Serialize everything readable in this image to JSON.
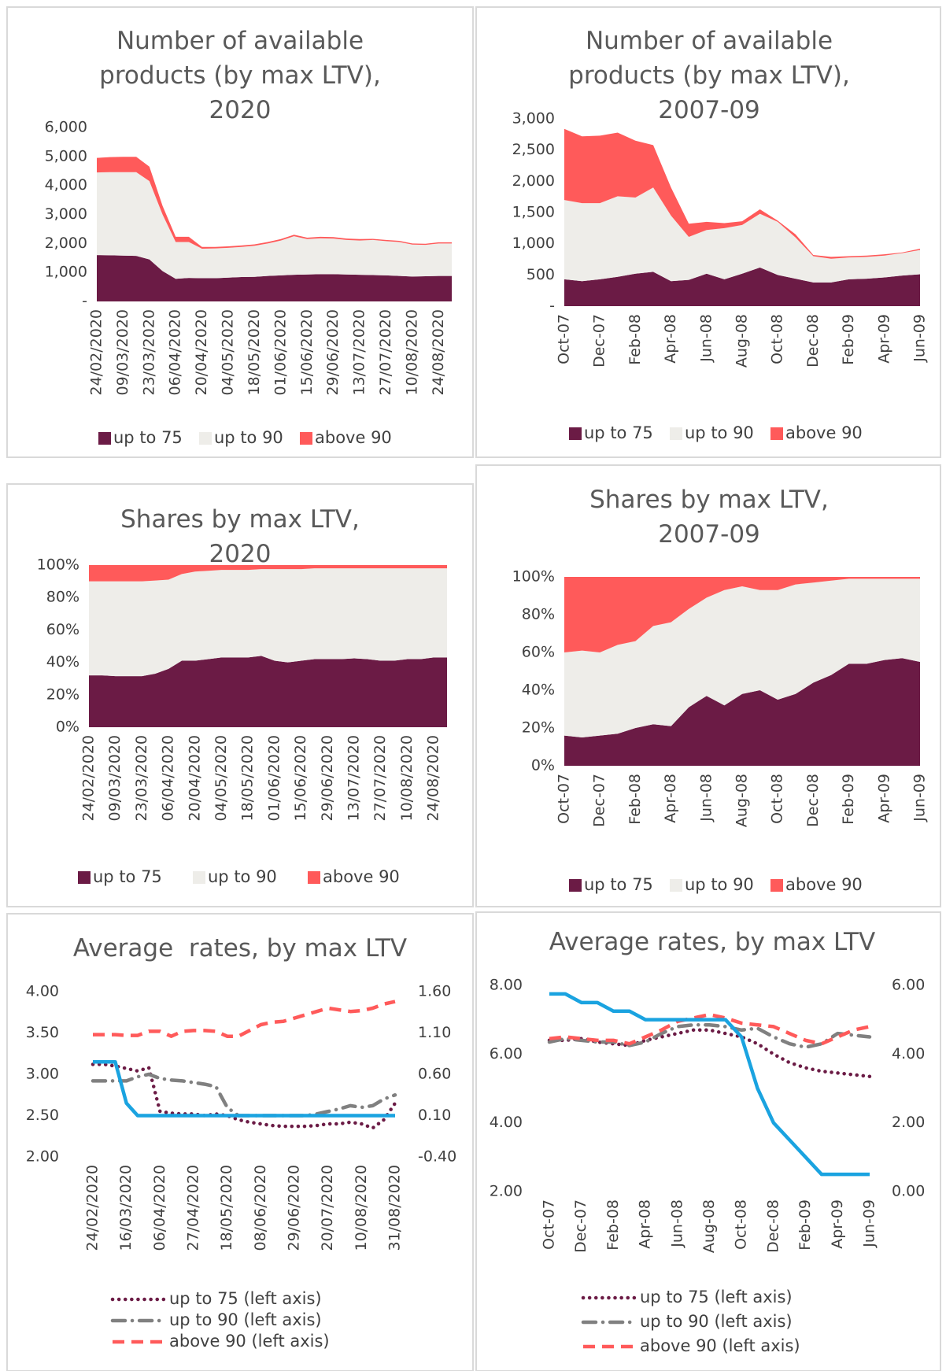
{
  "chart_data": [
    {
      "type": "area",
      "title": "Number of available products (by max LTV), 2020",
      "categories": [
        "24/02/2020",
        null,
        "09/03/2020",
        null,
        "23/03/2020",
        null,
        "06/04/2020",
        null,
        "20/04/2020",
        null,
        "04/05/2020",
        null,
        "18/05/2020",
        null,
        "01/06/2020",
        null,
        "15/06/2020",
        null,
        "29/06/2020",
        null,
        "13/07/2020",
        null,
        "27/07/2020",
        null,
        "10/08/2020",
        null,
        "24/08/2020",
        null
      ],
      "series": [
        {
          "name": "up to 75",
          "color": "#6b1b45",
          "values": [
            1600,
            1590,
            1580,
            1570,
            1450,
            1050,
            780,
            810,
            800,
            800,
            820,
            840,
            850,
            880,
            900,
            920,
            930,
            940,
            940,
            930,
            920,
            910,
            900,
            880,
            860,
            870,
            880,
            880
          ]
        },
        {
          "name": "up to 90",
          "color": "#eeede9",
          "values": [
            2850,
            2870,
            2880,
            2890,
            2700,
            1950,
            1270,
            1240,
            1020,
            1030,
            1030,
            1040,
            1070,
            1120,
            1200,
            1330,
            1220,
            1240,
            1230,
            1190,
            1180,
            1210,
            1180,
            1170,
            1100,
            1080,
            1120,
            1120
          ]
        },
        {
          "name": "above 90",
          "color": "#ff5a5a",
          "values": [
            500,
            520,
            530,
            530,
            500,
            300,
            180,
            180,
            60,
            50,
            50,
            50,
            50,
            50,
            50,
            50,
            50,
            50,
            50,
            50,
            50,
            40,
            40,
            40,
            40,
            40,
            40,
            40
          ]
        }
      ],
      "ylim": [
        0,
        6000
      ],
      "yticks": [
        {
          "value": 0,
          "label": "-"
        },
        {
          "value": 1000,
          "label": "1,000"
        },
        {
          "value": 2000,
          "label": "2,000"
        },
        {
          "value": 3000,
          "label": "3,000"
        },
        {
          "value": 4000,
          "label": "4,000"
        },
        {
          "value": 5000,
          "label": "5,000"
        },
        {
          "value": 6000,
          "label": "6,000"
        }
      ]
    },
    {
      "type": "area",
      "title": "Number of available products (by max LTV), 2007-09",
      "categories": [
        "Oct-07",
        null,
        "Dec-07",
        null,
        "Feb-08",
        null,
        "Apr-08",
        null,
        "Jun-08",
        null,
        "Aug-08",
        null,
        "Oct-08",
        null,
        "Dec-08",
        null,
        "Feb-09",
        null,
        "Apr-09",
        null,
        "Jun-09"
      ],
      "series": [
        {
          "name": "up to 75",
          "color": "#6b1b45",
          "values": [
            430,
            400,
            430,
            470,
            520,
            550,
            400,
            420,
            520,
            430,
            520,
            620,
            500,
            440,
            380,
            380,
            430,
            440,
            460,
            490,
            510
          ]
        },
        {
          "name": "up to 90",
          "color": "#eeede9",
          "values": [
            1270,
            1250,
            1220,
            1290,
            1220,
            1350,
            1050,
            690,
            700,
            820,
            780,
            860,
            850,
            660,
            420,
            380,
            350,
            350,
            350,
            360,
            390
          ]
        },
        {
          "name": "above 90",
          "color": "#ff5a5a",
          "values": [
            1140,
            1070,
            1080,
            1020,
            910,
            680,
            450,
            210,
            130,
            80,
            60,
            70,
            20,
            50,
            20,
            30,
            20,
            20,
            20,
            10,
            20
          ]
        }
      ],
      "ylim": [
        0,
        3000
      ],
      "yticks": [
        {
          "value": 0,
          "label": "-"
        },
        500,
        {
          "value": 1000,
          "label": "1,000"
        },
        {
          "value": 1500,
          "label": "1,500"
        },
        {
          "value": 2000,
          "label": "2,000"
        },
        {
          "value": 2500,
          "label": "2,500"
        },
        {
          "value": 3000,
          "label": "3,000"
        }
      ]
    },
    {
      "type": "area",
      "title": "Shares by max LTV, 2020",
      "categories": [
        "24/02/2020",
        null,
        "09/03/2020",
        null,
        "23/03/2020",
        null,
        "06/04/2020",
        null,
        "20/04/2020",
        null,
        "04/05/2020",
        null,
        "18/05/2020",
        null,
        "01/06/2020",
        null,
        "15/06/2020",
        null,
        "29/06/2020",
        null,
        "13/07/2020",
        null,
        "27/07/2020",
        null,
        "10/08/2020",
        null,
        "24/08/2020",
        null
      ],
      "series": [
        {
          "name": "up to 75",
          "color": "#6b1b45",
          "values": [
            32,
            32,
            31.5,
            31.5,
            31.5,
            33,
            36,
            41,
            41,
            42,
            43,
            43,
            43,
            44,
            41,
            40,
            41,
            42,
            42,
            42,
            42.5,
            42,
            41,
            41,
            42,
            42,
            43,
            43
          ]
        },
        {
          "name": "up to 90",
          "color": "#eeede9",
          "values": [
            58,
            58,
            58.5,
            58.5,
            58.5,
            57.5,
            55,
            53.5,
            55,
            54.5,
            54,
            54,
            54,
            53.5,
            56.5,
            57.5,
            56.5,
            56,
            56,
            56,
            55.5,
            56,
            57,
            57,
            56,
            56,
            55,
            55
          ]
        },
        {
          "name": "above 90",
          "color": "#ff5a5a",
          "values": [
            10,
            10,
            10,
            10,
            10,
            9.5,
            9,
            5.5,
            4,
            3.5,
            3,
            3,
            3,
            2.5,
            2.5,
            2.5,
            2.5,
            2,
            2,
            2,
            2,
            2,
            2,
            2,
            2,
            2,
            2,
            2
          ]
        }
      ],
      "ylim": [
        0,
        100
      ],
      "yticks": [
        {
          "value": 0,
          "label": "0%"
        },
        {
          "value": 20,
          "label": "20%"
        },
        {
          "value": 40,
          "label": "40%"
        },
        {
          "value": 60,
          "label": "60%"
        },
        {
          "value": 80,
          "label": "80%"
        },
        {
          "value": 100,
          "label": "100%"
        }
      ]
    },
    {
      "type": "area",
      "title": "Shares by max LTV, 2007-09",
      "categories": [
        "Oct-07",
        null,
        "Dec-07",
        null,
        "Feb-08",
        null,
        "Apr-08",
        null,
        "Jun-08",
        null,
        "Aug-08",
        null,
        "Oct-08",
        null,
        "Dec-08",
        null,
        "Feb-09",
        null,
        "Apr-09",
        null,
        "Jun-09"
      ],
      "series": [
        {
          "name": "up to 75",
          "color": "#6b1b45",
          "values": [
            16,
            15,
            16,
            17,
            20,
            22,
            21,
            31,
            37,
            32,
            38,
            40,
            35,
            38,
            44,
            48,
            54,
            54,
            56,
            57,
            55
          ]
        },
        {
          "name": "up to 90",
          "color": "#eeede9",
          "values": [
            44,
            46,
            44,
            47,
            46,
            52,
            55,
            52,
            52,
            61,
            57,
            53,
            58,
            58,
            53,
            50,
            45,
            45,
            43,
            42,
            44
          ]
        },
        {
          "name": "above 90",
          "color": "#ff5a5a",
          "values": [
            40,
            39,
            40,
            36,
            34,
            26,
            24,
            17,
            11,
            7,
            5,
            7,
            7,
            4,
            3,
            2,
            1,
            1,
            1,
            1,
            1
          ]
        }
      ],
      "ylim": [
        0,
        100
      ],
      "yticks": [
        {
          "value": 0,
          "label": "0%"
        },
        {
          "value": 20,
          "label": "20%"
        },
        {
          "value": 40,
          "label": "40%"
        },
        {
          "value": 60,
          "label": "60%"
        },
        {
          "value": 80,
          "label": "80%"
        },
        {
          "value": 100,
          "label": "100%"
        }
      ]
    },
    {
      "type": "line",
      "title": "Average  rates, by max LTV",
      "categories": [
        "24/02/2020",
        null,
        null,
        "16/03/2020",
        null,
        null,
        "06/04/2020",
        null,
        null,
        "27/04/2020",
        null,
        null,
        "18/05/2020",
        null,
        null,
        "08/06/2020",
        null,
        null,
        "29/06/2020",
        null,
        null,
        "20/07/2020",
        null,
        null,
        "10/08/2020",
        null,
        null,
        "31/08/2020"
      ],
      "series": [
        {
          "name": "up to 75 (left axis)",
          "color": "#6b1b45",
          "dash": "dotted",
          "values": [
            3.12,
            3.12,
            3.1,
            3.07,
            3.04,
            3.08,
            2.55,
            2.53,
            2.52,
            2.52,
            2.5,
            2.52,
            2.5,
            2.45,
            2.42,
            2.4,
            2.38,
            2.37,
            2.37,
            2.37,
            2.38,
            2.4,
            2.4,
            2.42,
            2.4,
            2.35,
            2.45,
            2.65
          ]
        },
        {
          "name": "up to 90 (left axis)",
          "color": "#808080",
          "dash": "dashdot",
          "values": [
            2.92,
            2.92,
            2.92,
            2.92,
            2.97,
            3.0,
            2.95,
            2.93,
            2.92,
            2.9,
            2.88,
            2.85,
            2.6,
            2.5,
            2.5,
            2.5,
            2.5,
            2.5,
            2.5,
            2.5,
            2.52,
            2.55,
            2.58,
            2.62,
            2.6,
            2.62,
            2.7,
            2.75
          ]
        },
        {
          "name": "above 90 (left axis)",
          "color": "#ff5a5a",
          "dash": "dashed",
          "values": [
            3.48,
            3.48,
            3.48,
            3.47,
            3.47,
            3.52,
            3.52,
            3.46,
            3.52,
            3.53,
            3.53,
            3.52,
            3.46,
            3.46,
            3.53,
            3.6,
            3.63,
            3.64,
            3.68,
            3.72,
            3.76,
            3.8,
            3.78,
            3.76,
            3.77,
            3.8,
            3.85,
            3.88
          ]
        },
        {
          "color": "#1aa3e0",
          "dash": "solid",
          "axis": "y2",
          "values": [
            0.75,
            0.75,
            0.75,
            0.25,
            0.1,
            0.1,
            0.1,
            0.1,
            0.1,
            0.1,
            0.1,
            0.1,
            0.1,
            0.1,
            0.1,
            0.1,
            0.1,
            0.1,
            0.1,
            0.1,
            0.1,
            0.1,
            0.1,
            0.1,
            0.1,
            0.1,
            0.1,
            0.1
          ]
        }
      ],
      "ylim": [
        2,
        4
      ],
      "yticks": [
        {
          "value": 2,
          "label": "2.00"
        },
        {
          "value": 2.5,
          "label": "2.50"
        },
        {
          "value": 3,
          "label": "3.00"
        },
        {
          "value": 3.5,
          "label": "3.50"
        },
        {
          "value": 4,
          "label": "4.00"
        }
      ],
      "y2lim": [
        -0.4,
        1.6
      ],
      "y2ticks": [
        {
          "value": -0.4,
          "label": "-0.40"
        },
        {
          "value": 0.1,
          "label": "0.10"
        },
        {
          "value": 0.6,
          "label": "0.60"
        },
        {
          "value": 1.1,
          "label": "1.10"
        },
        {
          "value": 1.6,
          "label": "1.60"
        }
      ]
    },
    {
      "type": "line",
      "title": "Average rates, by max LTV",
      "categories": [
        "Oct-07",
        null,
        "Dec-07",
        null,
        "Feb-08",
        null,
        "Apr-08",
        null,
        "Jun-08",
        null,
        "Aug-08",
        null,
        "Oct-08",
        null,
        "Dec-08",
        null,
        "Feb-09",
        null,
        "Apr-09",
        null,
        "Jun-09"
      ],
      "series": [
        {
          "name": "up to 75 (left axis)",
          "color": "#6b1b45",
          "dash": "dotted",
          "values": [
            6.4,
            6.4,
            6.45,
            6.35,
            6.3,
            6.25,
            6.4,
            6.5,
            6.6,
            6.7,
            6.7,
            6.6,
            6.5,
            6.3,
            6.0,
            5.75,
            5.6,
            5.5,
            5.45,
            5.4,
            5.35
          ]
        },
        {
          "name": "up to 90 (left axis)",
          "color": "#808080",
          "dash": "dashdot",
          "values": [
            6.35,
            6.45,
            6.4,
            6.35,
            6.35,
            6.25,
            6.35,
            6.6,
            6.8,
            6.85,
            6.85,
            6.8,
            6.7,
            6.75,
            6.5,
            6.3,
            6.2,
            6.3,
            6.6,
            6.55,
            6.5
          ]
        },
        {
          "name": "above 90 (left axis)",
          "color": "#ff5a5a",
          "dash": "dashed",
          "values": [
            6.45,
            6.5,
            6.45,
            6.4,
            6.4,
            6.3,
            6.5,
            6.7,
            6.95,
            7.05,
            7.15,
            7.05,
            6.9,
            6.85,
            6.8,
            6.6,
            6.4,
            6.3,
            6.5,
            6.7,
            6.8
          ]
        },
        {
          "color": "#1aa3e0",
          "dash": "solid",
          "axis": "y2",
          "values": [
            5.75,
            5.75,
            5.5,
            5.5,
            5.25,
            5.25,
            5.0,
            5.0,
            5.0,
            5.0,
            5.0,
            5.0,
            4.5,
            3.0,
            2.0,
            1.5,
            1.0,
            0.5,
            0.5,
            0.5,
            0.5
          ]
        }
      ],
      "ylim": [
        2,
        8
      ],
      "yticks": [
        {
          "value": 2,
          "label": "2.00"
        },
        {
          "value": 4,
          "label": "4.00"
        },
        {
          "value": 6,
          "label": "6.00"
        },
        {
          "value": 8,
          "label": "8.00"
        }
      ],
      "y2lim": [
        0,
        6
      ],
      "y2ticks": [
        {
          "value": 0,
          "label": "0.00"
        },
        {
          "value": 2,
          "label": "2.00"
        },
        {
          "value": 4,
          "label": "4.00"
        },
        {
          "value": 6,
          "label": "6.00"
        }
      ]
    }
  ]
}
